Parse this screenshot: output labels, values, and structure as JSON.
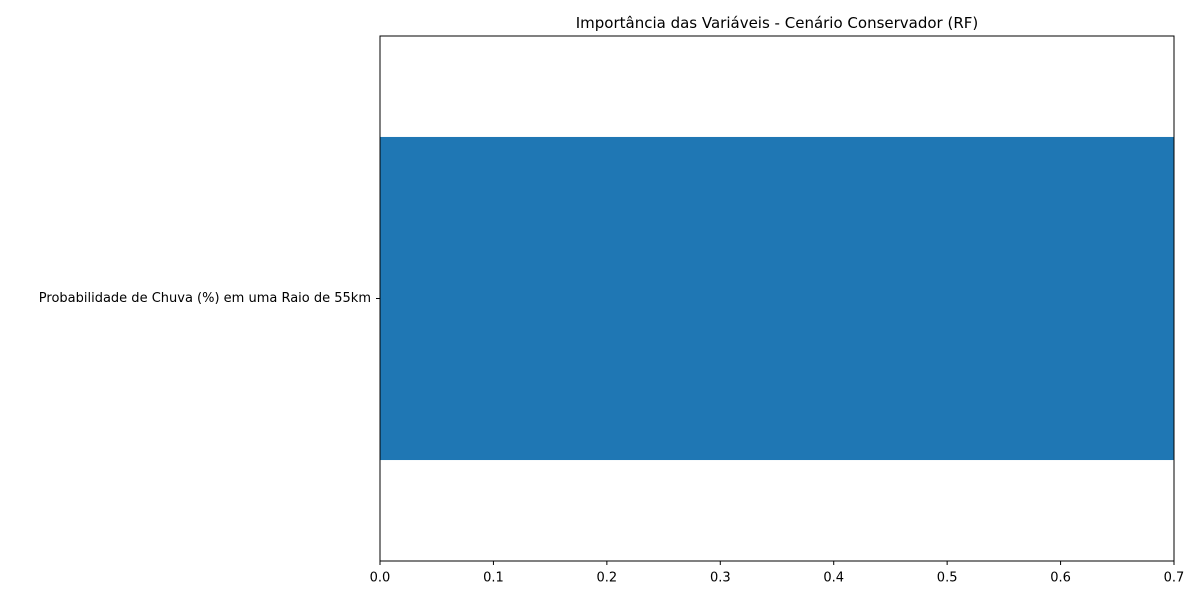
{
  "chart_data": {
    "type": "bar",
    "orientation": "horizontal",
    "title": "Importância das Variáveis - Cenário Conservador (RF)",
    "xlabel": "",
    "ylabel": "",
    "categories": [
      "Probabilidade de Chuva (%) em uma Raio de 55km"
    ],
    "values": [
      0.7
    ],
    "xlim": [
      0.0,
      0.7
    ],
    "x_ticks": [
      0.0,
      0.1,
      0.2,
      0.3,
      0.4,
      0.5,
      0.6,
      0.7
    ],
    "x_tick_labels": [
      "0.0",
      "0.1",
      "0.2",
      "0.3",
      "0.4",
      "0.5",
      "0.6",
      "0.7"
    ],
    "grid": false,
    "legend": "none",
    "colors": {
      "bar": "#1f77b4",
      "axis": "#000000",
      "background": "#ffffff"
    }
  }
}
